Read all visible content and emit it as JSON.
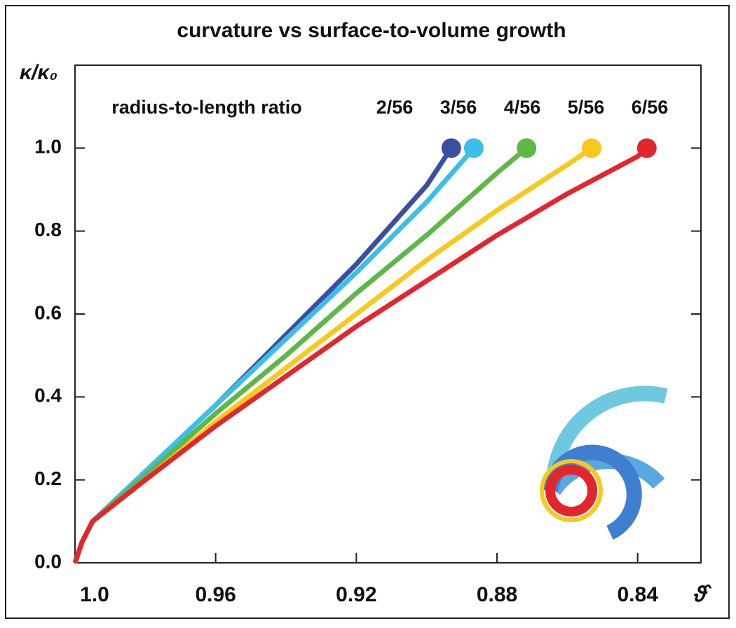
{
  "chart_data": {
    "type": "line",
    "title": "curvature vs surface-to-volume growth",
    "x_label": "ϑ̂",
    "y_label": "κ/κ₀",
    "legend_title": "radius-to-length ratio",
    "xlim": [
      1.0,
      0.822
    ],
    "ylim": [
      0,
      1.2
    ],
    "xticks": [
      {
        "value": 1,
        "label": "1.0"
      },
      0.96,
      0.92,
      0.88,
      0.84
    ],
    "yticks": [
      {
        "value": 0,
        "label": "0.0"
      },
      0.2,
      0.4,
      0.6,
      0.8,
      {
        "value": 1,
        "label": "1.0"
      }
    ],
    "series": [
      {
        "name": "2/56",
        "color": "#3a4fa0",
        "x": [
          1.0,
          0.998,
          0.995,
          0.98,
          0.96,
          0.94,
          0.92,
          0.9,
          0.893
        ],
        "values": [
          0,
          0.05,
          0.1,
          0.22,
          0.38,
          0.55,
          0.72,
          0.91,
          1.0
        ]
      },
      {
        "name": "3/56",
        "color": "#3bbfea",
        "x": [
          1.0,
          0.998,
          0.995,
          0.98,
          0.96,
          0.94,
          0.92,
          0.9,
          0.8866
        ],
        "values": [
          0,
          0.05,
          0.1,
          0.22,
          0.38,
          0.54,
          0.7,
          0.87,
          1.0
        ]
      },
      {
        "name": "4/56",
        "color": "#5db846",
        "x": [
          1.0,
          0.998,
          0.995,
          0.98,
          0.96,
          0.94,
          0.92,
          0.9,
          0.88,
          0.8716
        ],
        "values": [
          0,
          0.05,
          0.1,
          0.21,
          0.36,
          0.5,
          0.65,
          0.79,
          0.94,
          1.0
        ]
      },
      {
        "name": "5/56",
        "color": "#f8c81c",
        "x": [
          1.0,
          0.998,
          0.995,
          0.98,
          0.96,
          0.94,
          0.92,
          0.9,
          0.88,
          0.86,
          0.8531
        ],
        "values": [
          0,
          0.05,
          0.1,
          0.2,
          0.34,
          0.47,
          0.6,
          0.73,
          0.85,
          0.96,
          1.0
        ]
      },
      {
        "name": "6/56",
        "color": "#e4262c",
        "x": [
          1.0,
          0.998,
          0.995,
          0.98,
          0.96,
          0.94,
          0.92,
          0.9,
          0.88,
          0.86,
          0.84,
          0.8374
        ],
        "values": [
          0,
          0.05,
          0.1,
          0.2,
          0.33,
          0.45,
          0.57,
          0.68,
          0.79,
          0.89,
          0.98,
          1.0
        ]
      }
    ]
  }
}
